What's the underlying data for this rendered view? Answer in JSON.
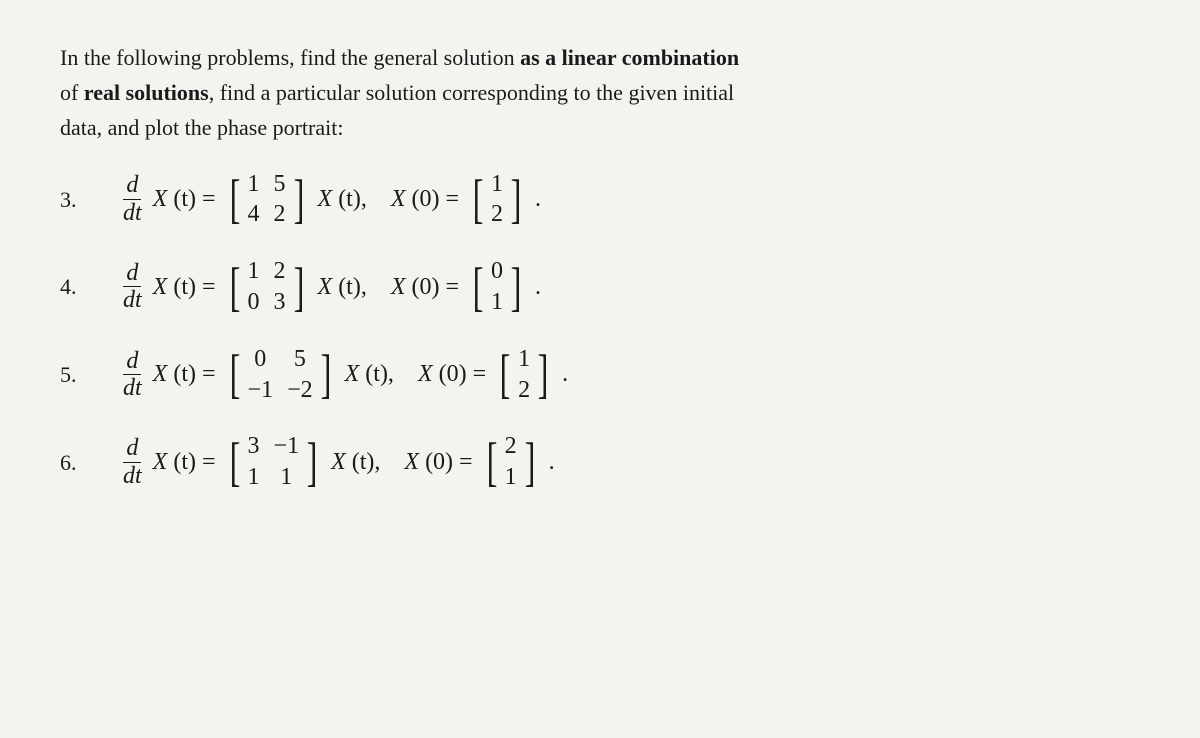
{
  "intro": {
    "line1_pre": "In the following problems, find the general solution ",
    "line1_bold": "as a linear combination",
    "line2_pre": "of ",
    "line2_bold": "real solutions",
    "line2_post": ", find a particular solution corresponding to the given initial",
    "line3": "data, and plot the phase portrait:"
  },
  "derivative": {
    "top": "d",
    "bot": "dt"
  },
  "symbols": {
    "X": "X",
    "t": "t",
    "eq": "=",
    "zero": "0",
    "dot": "."
  },
  "problems": [
    {
      "num": "3.",
      "A": [
        [
          "1",
          "5"
        ],
        [
          "4",
          "2"
        ]
      ],
      "X0": [
        "1",
        "2"
      ]
    },
    {
      "num": "4.",
      "A": [
        [
          "1",
          "2"
        ],
        [
          "0",
          "3"
        ]
      ],
      "X0": [
        "0",
        "1"
      ]
    },
    {
      "num": "5.",
      "A": [
        [
          "0",
          "5"
        ],
        [
          "−1",
          "−2"
        ]
      ],
      "X0": [
        "1",
        "2"
      ]
    },
    {
      "num": "6.",
      "A": [
        [
          "3",
          "−1"
        ],
        [
          "1",
          "1"
        ]
      ],
      "X0": [
        "2",
        "1"
      ]
    }
  ]
}
